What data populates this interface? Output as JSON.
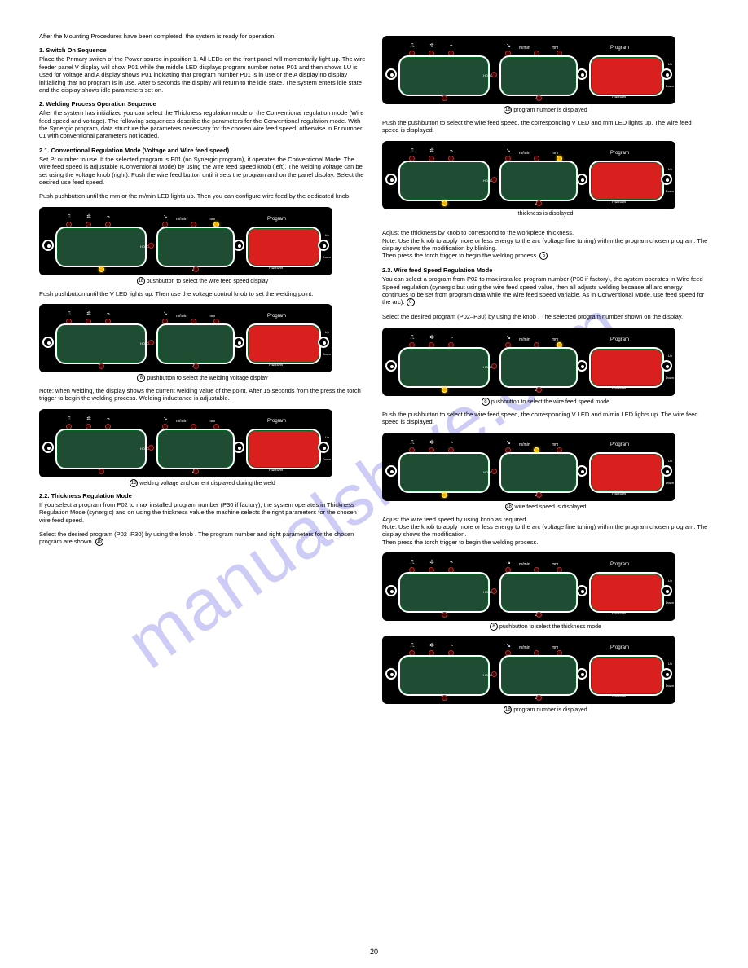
{
  "watermark": "manualshive.com",
  "pageNumber": "20",
  "panel": {
    "display_green": "#1f4d33",
    "display_red": "#d9201e",
    "panel_bg": "#000000",
    "border": "#ffffff",
    "led_on": "#ffb000",
    "led_off": "#440000",
    "vLabel": "V",
    "aLabel": "A",
    "program": "Program",
    "number": "Number",
    "hold": "HOLD",
    "up": "Up",
    "down": "Down",
    "mmin": "m/min",
    "mm": "mm"
  },
  "circledRefs": {
    "r5": "5",
    "r6": "6",
    "r8": "8",
    "r18": "18"
  },
  "left": {
    "intro": "After the Mounting Procedures have been completed, the system is ready for operation.",
    "step1h": "1. Switch On Sequence",
    "step1b": "Place the Primary switch of the Power source in position 1. All LEDs on the front panel will momentarily light up. The wire feeder panel V display will show P01 while the middle LED displays program number notes P01 and then shows LU is used for voltage and A display shows P01 indicating that program number P01 is in use or the A display no display initializing that no program is in use. After 5 seconds the display will return to the idle state. The system enters idle state and the display shows idle parameters set on.",
    "step2h": "2. Welding Process Operation Sequence",
    "step2b": "After the system has initialized you can select the Thickness regulation mode or the Conventional regulation mode (Wire feed speed and voltage). The following sequences describe the parameters for the Conventional regulation mode. With the Synergic program, data structure the parameters necessary for the chosen wire feed speed, otherwise in Pr number 01 with conventional parameters not loaded.",
    "step21h": "2.1. Conventional Regulation Mode (Voltage and Wire feed speed)",
    "step21b": "Set Pr number to use. If the selected program is P01 (no Synergic program), it operates the Conventional Mode. The wire feed speed is adjustable (Conventional Mode) by using the wire feed speed knob (left). The welding voltage can be set using the voltage knob (right). Push the wire feed button until it sets the program and on the panel display. Select the desired use feed speed.",
    "step21b2": "Push pushbutton until the mm or the m/min LED lights up. Then you can configure wire feed by the dedicated knob.",
    "cap1": "pushbutton to select the wire feed speed display",
    "step21b3": "Push pushbutton until the V LED lights up. Then use the voltage control knob to set the welding point.",
    "cap2": "pushbutton to select the welding voltage display",
    "step21b4": "Note: when welding, the display shows the current welding value of the point. After 15 seconds from the press the torch trigger to begin the welding process. Welding inductance is adjustable.",
    "cap3": "welding voltage and current displayed during the weld",
    "step22h": "2.2. Thickness Regulation Mode",
    "step22b": "If you select a program from P02 to max installed program number (P30 if factory), the system operates in Thickness Regulation Mode (synergic) and on using the thickness value the machine selects the right parameters for the chosen wire feed speed.",
    "step22b2": "Select the desired program (P02–P30) by using the knob . The program number and right parameters for the chosen program are shown."
  },
  "right": {
    "cap1": "program number is displayed",
    "r1a": "Push the pushbutton to select the wire feed speed, the corresponding V LED and mm LED lights up. The wire feed speed is displayed.",
    "cap2": "thickness is displayed",
    "r1b": "Adjust the thickness by knob to correspond to the workpiece thickness.\nNote: Use the knob to apply more or less energy to the arc (voltage fine tuning) within the program chosen program. The display shows the modification by blinking.\nThen press the torch trigger to begin the welding process.",
    "step23h": "2.3. Wire feed Speed Regulation Mode",
    "step23b": "You can select a program from P02 to max installed program number (P30 if factory), the system operates in Wire feed Speed regulation (synergic but using the wire feed speed value, then all adjusts welding because all arc energy continues to be set from program data while the wire feed speed variable. As in Conventional Mode, use feed speed for the arc).",
    "step23b2": "Select the desired program (P02–P30) by using the knob . The selected program number shown on the display.",
    "step23b3": "Push the pushbutton to select the wire feed speed, the corresponding V LED and m/min LED lights up. The wire feed speed is displayed.",
    "cap3": "pushbutton to select the wire feed speed mode",
    "cap4": "wire feed speed is displayed",
    "step23b4": "Adjust the wire feed speed by using knob as required.\nNote: Use the knob to apply more or less energy to the arc (voltage fine tuning) within the program chosen program. The display shows the modification.\nThen press the torch trigger to begin the welding process.",
    "cap5": "pushbutton to select the thickness mode",
    "cap6": "program number is displayed"
  }
}
